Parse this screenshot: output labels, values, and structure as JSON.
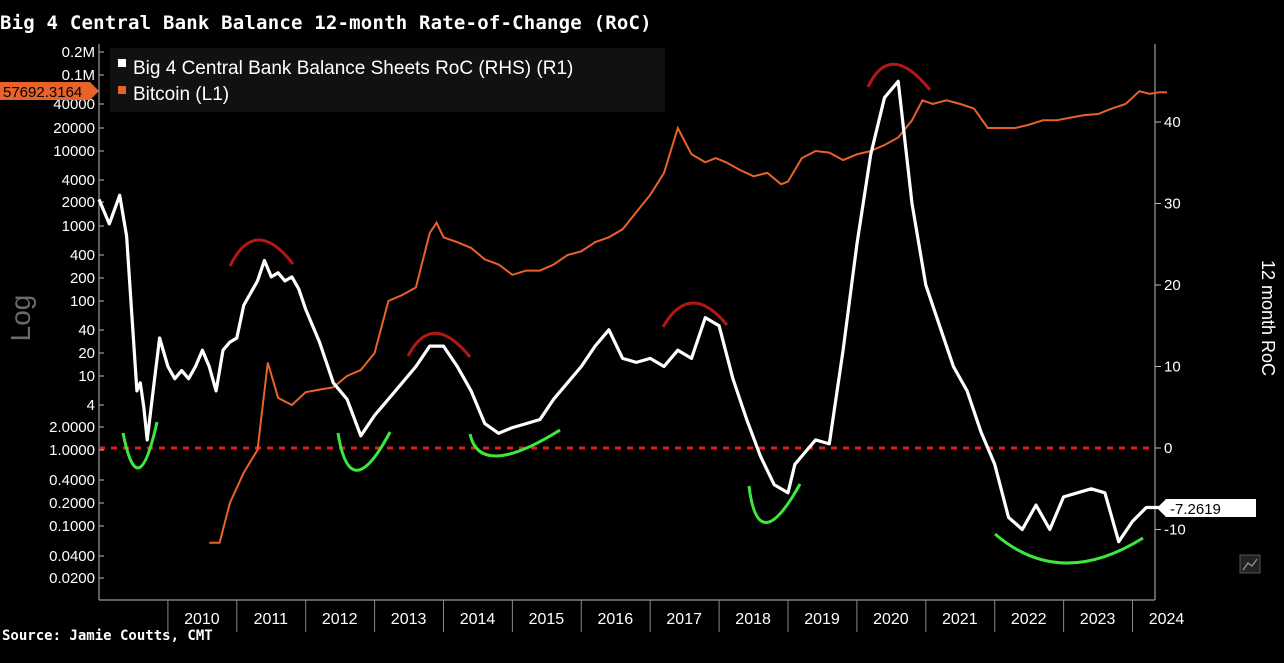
{
  "title": "Big 4 Central Bank Balance 12-month Rate-of-Change (RoC)",
  "source": "Source: Jamie Coutts, CMT",
  "colors": {
    "background": "#000000",
    "bitcoin": "#e8622a",
    "roc": "#ffffff",
    "zero_line": "#e01e1e",
    "trough": "#3de83d",
    "peak": "#c01818"
  },
  "chart_data": {
    "type": "line",
    "title": "Big 4 Central Bank Balance 12-month Rate-of-Change (RoC)",
    "left_axis": {
      "label": "Log",
      "scale": "log",
      "ticks": [
        "0.2M",
        "0.1M",
        "40000",
        "20000",
        "10000",
        "4000",
        "2000",
        "1000",
        "400",
        "200",
        "100",
        "40",
        "20",
        "10",
        "4",
        "2.0000",
        "1.0000",
        "0.4000",
        "0.2000",
        "0.1000",
        "0.0400",
        "0.0200"
      ]
    },
    "right_axis": {
      "label": "12 month RoC",
      "ylim": [
        -16,
        50
      ],
      "ticks": [
        40,
        30,
        20,
        10,
        0,
        -10
      ]
    },
    "x_ticks": [
      "2010",
      "2011",
      "2012",
      "2013",
      "2014",
      "2015",
      "2016",
      "2017",
      "2018",
      "2019",
      "2020",
      "2021",
      "2022",
      "2023",
      "2024"
    ],
    "legend": [
      {
        "name": "Big 4 Central Bank Balance Sheets RoC (RHS) (R1)",
        "color": "#ffffff"
      },
      {
        "name": "Bitcoin (L1)",
        "color": "#e8622a"
      }
    ],
    "last_values": {
      "bitcoin": "57692.3164",
      "roc": "-7.2619"
    },
    "series": [
      {
        "name": "Big 4 Central Bank Balance Sheets RoC",
        "axis": "right",
        "x": [
          2009.0,
          2009.15,
          2009.3,
          2009.4,
          2009.55,
          2009.6,
          2009.65,
          2009.7,
          2009.8,
          2009.88,
          2010.0,
          2010.1,
          2010.2,
          2010.3,
          2010.4,
          2010.5,
          2010.6,
          2010.7,
          2010.8,
          2010.9,
          2011.0,
          2011.1,
          2011.2,
          2011.3,
          2011.4,
          2011.5,
          2011.6,
          2011.7,
          2011.8,
          2011.9,
          2012.0,
          2012.2,
          2012.4,
          2012.6,
          2012.8,
          2013.0,
          2013.2,
          2013.4,
          2013.6,
          2013.8,
          2014.0,
          2014.2,
          2014.4,
          2014.6,
          2014.8,
          2015.0,
          2015.2,
          2015.4,
          2015.6,
          2015.8,
          2016.0,
          2016.2,
          2016.4,
          2016.6,
          2016.8,
          2017.0,
          2017.2,
          2017.4,
          2017.6,
          2017.8,
          2018.0,
          2018.2,
          2018.4,
          2018.6,
          2018.8,
          2019.0,
          2019.1,
          2019.2,
          2019.4,
          2019.6,
          2019.8,
          2020.0,
          2020.2,
          2020.4,
          2020.6,
          2020.8,
          2021.0,
          2021.2,
          2021.4,
          2021.6,
          2021.8,
          2022.0,
          2022.2,
          2022.4,
          2022.6,
          2022.8,
          2023.0,
          2023.2,
          2023.4,
          2023.6,
          2023.8,
          2024.0,
          2024.2,
          2024.4,
          2024.5
        ],
        "y": [
          30.5,
          27.5,
          31.0,
          26.0,
          7.0,
          8.0,
          5.0,
          1.0,
          8.0,
          13.5,
          10.0,
          8.5,
          9.5,
          8.5,
          10.0,
          12.0,
          10.0,
          7.0,
          12.0,
          13.0,
          13.5,
          17.5,
          19.0,
          20.5,
          23.0,
          21.0,
          21.5,
          20.5,
          21.0,
          19.5,
          17.0,
          13.0,
          8.0,
          6.0,
          1.5,
          4.0,
          6.0,
          8.0,
          10.0,
          12.5,
          12.5,
          10.0,
          7.0,
          3.0,
          1.8,
          2.5,
          3.0,
          3.5,
          6.0,
          8.0,
          10.0,
          12.5,
          14.5,
          11.0,
          10.5,
          11.0,
          10.0,
          12.0,
          11.0,
          16.0,
          15.0,
          8.5,
          3.5,
          -1.0,
          -4.5,
          -5.5,
          -2.0,
          -1.0,
          1.0,
          0.5,
          12.0,
          25.0,
          36.0,
          43.0,
          45.0,
          30.0,
          20.0,
          15.0,
          10.0,
          7.0,
          2.0,
          -2.0,
          -8.5,
          -10.0,
          -7.0,
          -10.0,
          -6.0,
          -5.5,
          -5.0,
          -5.5,
          -11.5,
          -9.0,
          -7.3,
          -7.3,
          -7.3
        ]
      },
      {
        "name": "Bitcoin",
        "axis": "left",
        "x": [
          2010.6,
          2010.75,
          2010.9,
          2011.1,
          2011.3,
          2011.45,
          2011.6,
          2011.8,
          2012.0,
          2012.2,
          2012.4,
          2012.6,
          2012.8,
          2013.0,
          2013.2,
          2013.4,
          2013.6,
          2013.8,
          2013.9,
          2014.0,
          2014.2,
          2014.4,
          2014.6,
          2014.8,
          2015.0,
          2015.2,
          2015.4,
          2015.6,
          2015.8,
          2016.0,
          2016.2,
          2016.4,
          2016.6,
          2016.8,
          2017.0,
          2017.2,
          2017.4,
          2017.6,
          2017.8,
          2017.95,
          2018.1,
          2018.3,
          2018.5,
          2018.7,
          2018.9,
          2019.0,
          2019.2,
          2019.4,
          2019.6,
          2019.8,
          2020.0,
          2020.2,
          2020.4,
          2020.6,
          2020.8,
          2020.95,
          2021.1,
          2021.3,
          2021.5,
          2021.7,
          2021.9,
          2022.1,
          2022.3,
          2022.5,
          2022.7,
          2022.9,
          2023.1,
          2023.3,
          2023.5,
          2023.7,
          2023.9,
          2024.1,
          2024.25,
          2024.4,
          2024.5
        ],
        "y": [
          0.06,
          0.06,
          0.2,
          0.5,
          1.0,
          15,
          5,
          4,
          6,
          6.5,
          7,
          10,
          12,
          20,
          100,
          120,
          150,
          800,
          1100,
          700,
          600,
          500,
          350,
          300,
          220,
          250,
          250,
          300,
          400,
          450,
          600,
          700,
          900,
          1500,
          2500,
          5000,
          20000,
          9000,
          7000,
          8000,
          7000,
          5500,
          4500,
          5000,
          3500,
          3800,
          8000,
          10000,
          9500,
          7500,
          9000,
          10000,
          12000,
          15000,
          25000,
          45000,
          40000,
          45000,
          40000,
          35000,
          20000,
          20000,
          20000,
          22000,
          25000,
          25000,
          27000,
          29000,
          30000,
          35000,
          40000,
          60000,
          55000,
          58000,
          57692.3164
        ]
      }
    ]
  }
}
